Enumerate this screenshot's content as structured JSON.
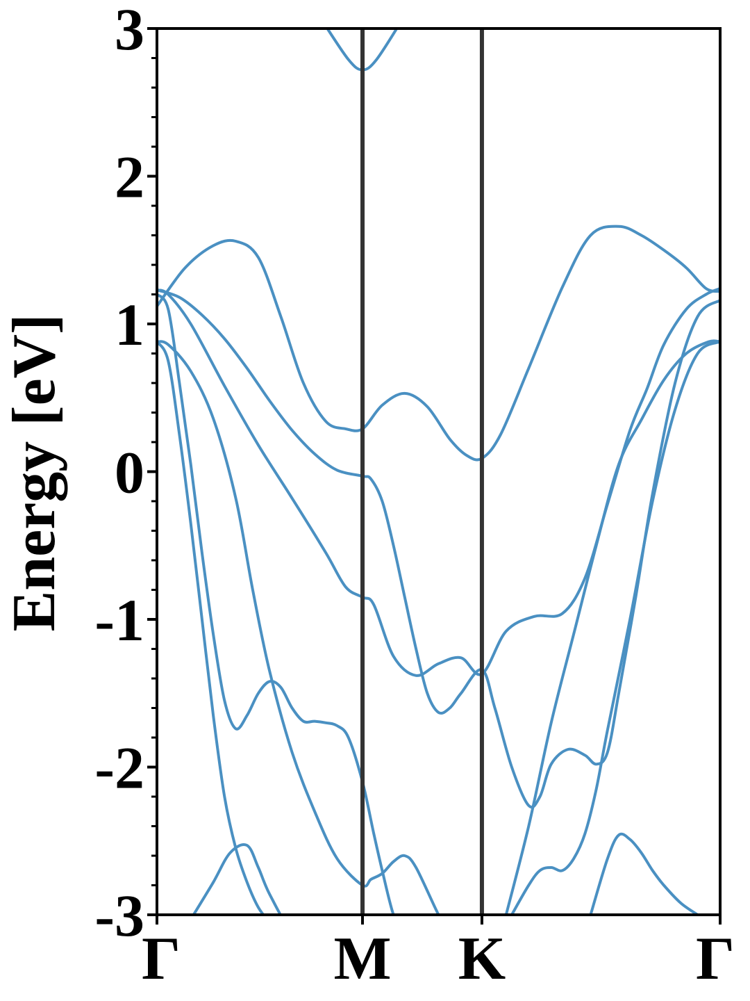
{
  "chart_data": {
    "type": "line",
    "title": "",
    "xlabel": "",
    "ylabel": "Energy [eV]",
    "ylim": [
      -3,
      3
    ],
    "xlim": [
      0,
      1
    ],
    "grid": false,
    "yticks": [
      {
        "value": 3,
        "label": "3"
      },
      {
        "value": 2,
        "label": "2"
      },
      {
        "value": 1,
        "label": "1"
      },
      {
        "value": 0,
        "label": "0"
      },
      {
        "value": -1,
        "label": "-1"
      },
      {
        "value": -2,
        "label": "-2"
      },
      {
        "value": -3,
        "label": "-3"
      }
    ],
    "xticks": [
      {
        "value": 0,
        "label": "Γ"
      },
      {
        "value": 0.365,
        "label": "M"
      },
      {
        "value": 0.577,
        "label": "K"
      },
      {
        "value": 1,
        "label": "Γ"
      }
    ],
    "symmetry_lines": [
      0.365,
      0.577
    ],
    "colors": {
      "bands": "#4a90c2",
      "symmetry_lines": "#333333",
      "axes": "#000000"
    },
    "series": [
      {
        "x": [
          0.294,
          0.34,
          0.365,
          0.39,
          0.434
        ],
        "y": [
          3.05,
          2.79,
          2.72,
          2.79,
          3.05
        ]
      },
      {
        "x": [
          0,
          0.05,
          0.1,
          0.14,
          0.18,
          0.22,
          0.26,
          0.3,
          0.335,
          0.365,
          0.4,
          0.44,
          0.48,
          0.52,
          0.55,
          0.577,
          0.61,
          0.66,
          0.72,
          0.77,
          0.82,
          0.86,
          0.9,
          0.94,
          0.975,
          1
        ],
        "y": [
          1.12,
          1.38,
          1.53,
          1.56,
          1.45,
          1.05,
          0.6,
          0.34,
          0.29,
          0.29,
          0.45,
          0.53,
          0.44,
          0.22,
          0.11,
          0.09,
          0.25,
          0.7,
          1.25,
          1.6,
          1.66,
          1.6,
          1.5,
          1.38,
          1.24,
          1.22
        ]
      },
      {
        "x": [
          0,
          0.02,
          0.06,
          0.12,
          0.18,
          0.24,
          0.3,
          0.335,
          0.365,
          0.385,
          0.42,
          0.46,
          0.5,
          0.54,
          0.577,
          0.62,
          0.67,
          0.72,
          0.76,
          0.8,
          0.84,
          0.87,
          0.9,
          0.94,
          0.975,
          1
        ],
        "y": [
          1.23,
          1.2,
          1.0,
          0.58,
          0.18,
          -0.18,
          -0.55,
          -0.78,
          -0.85,
          -0.9,
          -1.25,
          -1.38,
          -1.3,
          -1.26,
          -1.37,
          -1.08,
          -0.98,
          -0.96,
          -0.72,
          -0.22,
          0.28,
          0.56,
          0.86,
          1.1,
          1.2,
          1.24
        ]
      },
      {
        "x": [
          0,
          0.04,
          0.08,
          0.12,
          0.16,
          0.2,
          0.24,
          0.28,
          0.32,
          0.365,
          0.38,
          0.4,
          0.42,
          0.44,
          0.46,
          0.48,
          0.5,
          0.52,
          0.54,
          0.577,
          0.6,
          0.63,
          0.66,
          0.68,
          0.7,
          0.73,
          0.76,
          0.78,
          0.8,
          0.82,
          0.85,
          0.88,
          0.92,
          0.96,
          1
        ],
        "y": [
          1.23,
          1.18,
          1.06,
          0.9,
          0.7,
          0.48,
          0.28,
          0.12,
          0.01,
          -0.03,
          -0.05,
          -0.2,
          -0.5,
          -0.85,
          -1.2,
          -1.5,
          -1.63,
          -1.6,
          -1.5,
          -1.34,
          -1.6,
          -2.0,
          -2.26,
          -2.2,
          -1.98,
          -1.88,
          -1.92,
          -1.98,
          -1.9,
          -1.5,
          -0.85,
          -0.15,
          0.6,
          1.05,
          1.16
        ]
      },
      {
        "x": [
          0,
          0.02,
          0.06,
          0.1,
          0.14,
          0.17,
          0.2,
          0.24,
          0.28,
          0.32,
          0.365,
          0.38,
          0.4,
          0.42,
          0.44,
          0.46,
          0.5,
          0.52
        ],
        "y": [
          0.88,
          0.86,
          0.68,
          0.36,
          -0.18,
          -0.8,
          -1.35,
          -1.9,
          -2.3,
          -2.62,
          -2.8,
          -2.76,
          -2.72,
          -2.64,
          -2.6,
          -2.68,
          -3.0,
          -3.12
        ]
      },
      {
        "x": [
          0,
          0.02,
          0.04,
          0.06,
          0.08,
          0.1,
          0.12,
          0.14,
          0.16,
          0.18,
          0.2,
          0.22,
          0.24,
          0.26,
          0.28,
          0.3,
          0.32,
          0.34,
          0.365,
          0.385,
          0.4,
          0.42,
          0.44,
          0.46,
          0.48,
          0.5,
          0.52
        ],
        "y": [
          1.2,
          1.1,
          0.6,
          0.05,
          -0.55,
          -1.1,
          -1.55,
          -1.74,
          -1.65,
          -1.5,
          -1.42,
          -1.46,
          -1.6,
          -1.69,
          -1.69,
          -1.7,
          -1.72,
          -1.8,
          -2.1,
          -2.45,
          -2.7,
          -3.0,
          -3.15,
          -3.25,
          -3.25,
          -3.25,
          -3.25
        ]
      },
      {
        "x": [
          0,
          0.02,
          0.04,
          0.06,
          0.08,
          0.1,
          0.12,
          0.14,
          0.16,
          0.18,
          0.2,
          0.214
        ],
        "y": [
          0.88,
          0.75,
          0.25,
          -0.35,
          -1.0,
          -1.65,
          -2.2,
          -2.55,
          -2.78,
          -2.95,
          -3.05,
          -3.1
        ]
      },
      {
        "x": [
          0.065,
          0.1,
          0.13,
          0.16,
          0.18,
          0.2,
          0.24,
          0.28,
          0.3
        ],
        "y": [
          -3.0,
          -2.78,
          -2.58,
          -2.53,
          -2.68,
          -2.86,
          -3.12,
          -3.2,
          -3.2
        ]
      },
      {
        "x": [
          0.62,
          0.66,
          0.7,
          0.74,
          0.78,
          0.82,
          0.86,
          0.9,
          0.94,
          0.98,
          1
        ],
        "y": [
          -3.0,
          -2.4,
          -1.7,
          -1.1,
          -0.5,
          0.05,
          0.35,
          0.62,
          0.8,
          0.88,
          0.88
        ]
      },
      {
        "x": [
          0.63,
          0.66,
          0.68,
          0.7,
          0.72,
          0.74,
          0.76,
          0.78,
          0.8,
          0.84,
          0.88,
          0.92,
          0.96,
          1
        ],
        "y": [
          -3.0,
          -2.8,
          -2.7,
          -2.68,
          -2.7,
          -2.62,
          -2.45,
          -2.15,
          -1.75,
          -1.0,
          -0.2,
          0.42,
          0.8,
          0.88
        ]
      },
      {
        "x": [
          0.77,
          0.8,
          0.82,
          0.84,
          0.86,
          0.88,
          0.9,
          0.93,
          0.96,
          0.98
        ],
        "y": [
          -3.0,
          -2.62,
          -2.46,
          -2.49,
          -2.58,
          -2.7,
          -2.8,
          -2.92,
          -3.0,
          -3.05
        ]
      }
    ]
  }
}
